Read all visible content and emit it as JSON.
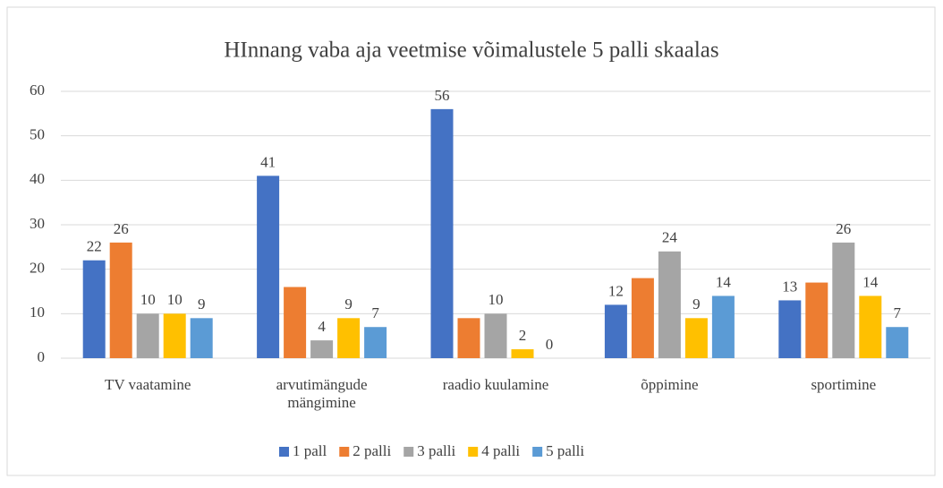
{
  "chart_data": {
    "type": "bar",
    "title": "HInnang vaba aja veetmise võimalustele 5 palli skaalas",
    "categories": [
      "TV vaatamine",
      "arvutimängude mängimine",
      "raadio kuulamine",
      "õppimine",
      "sportimine"
    ],
    "series": [
      {
        "name": "1 pall",
        "color": "#4472c4",
        "values": [
          22,
          41,
          56,
          12,
          13
        ],
        "value_labels": [
          "22",
          "41",
          "56",
          "12",
          "13"
        ]
      },
      {
        "name": "2 palli",
        "color": "#ed7d31",
        "values": [
          26,
          16,
          9,
          18,
          17
        ],
        "value_labels": [
          "26",
          null,
          null,
          null,
          null
        ]
      },
      {
        "name": "3 palli",
        "color": "#a5a5a5",
        "values": [
          10,
          4,
          10,
          24,
          26
        ],
        "value_labels": [
          "10",
          "4",
          "10",
          "24",
          "26"
        ]
      },
      {
        "name": "4 palli",
        "color": "#ffc000",
        "values": [
          10,
          9,
          2,
          9,
          14
        ],
        "value_labels": [
          "10",
          "9",
          "2",
          "9",
          "14"
        ]
      },
      {
        "name": "5 palli",
        "color": "#5b9bd5",
        "values": [
          9,
          7,
          0,
          14,
          7
        ],
        "value_labels": [
          "9",
          "7",
          "0",
          "14",
          "7"
        ]
      }
    ],
    "ylim": [
      0,
      60
    ],
    "yticks": [
      0,
      10,
      20,
      30,
      40,
      50,
      60
    ],
    "grid": true,
    "legend": "bottom"
  }
}
